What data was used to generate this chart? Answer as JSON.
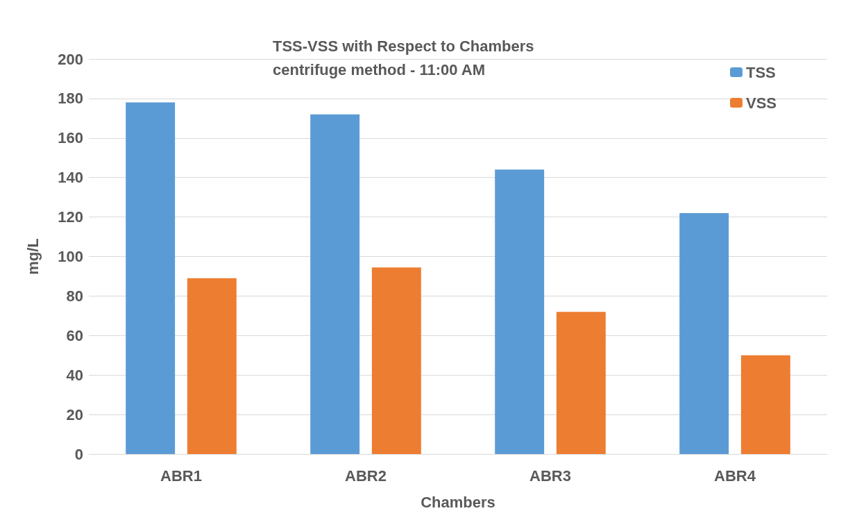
{
  "chart_data": {
    "type": "bar",
    "title": "TSS-VSS with Respect to Chambers",
    "subtitle": "centrifuge method - 11:00 AM",
    "xlabel": "Chambers",
    "ylabel": "mg/L",
    "categories": [
      "ABR1",
      "ABR2",
      "ABR3",
      "ABR4"
    ],
    "series": [
      {
        "name": "TSS",
        "color": "#5b9bd5",
        "values": [
          178,
          172,
          144,
          122
        ]
      },
      {
        "name": "VSS",
        "color": "#ed7d31",
        "values": [
          89,
          94.5,
          72,
          50
        ]
      }
    ],
    "ylim": [
      0,
      200
    ],
    "yticks": [
      0,
      20,
      40,
      60,
      80,
      100,
      120,
      140,
      160,
      180,
      200
    ],
    "grid": "y",
    "legend": "top right"
  }
}
